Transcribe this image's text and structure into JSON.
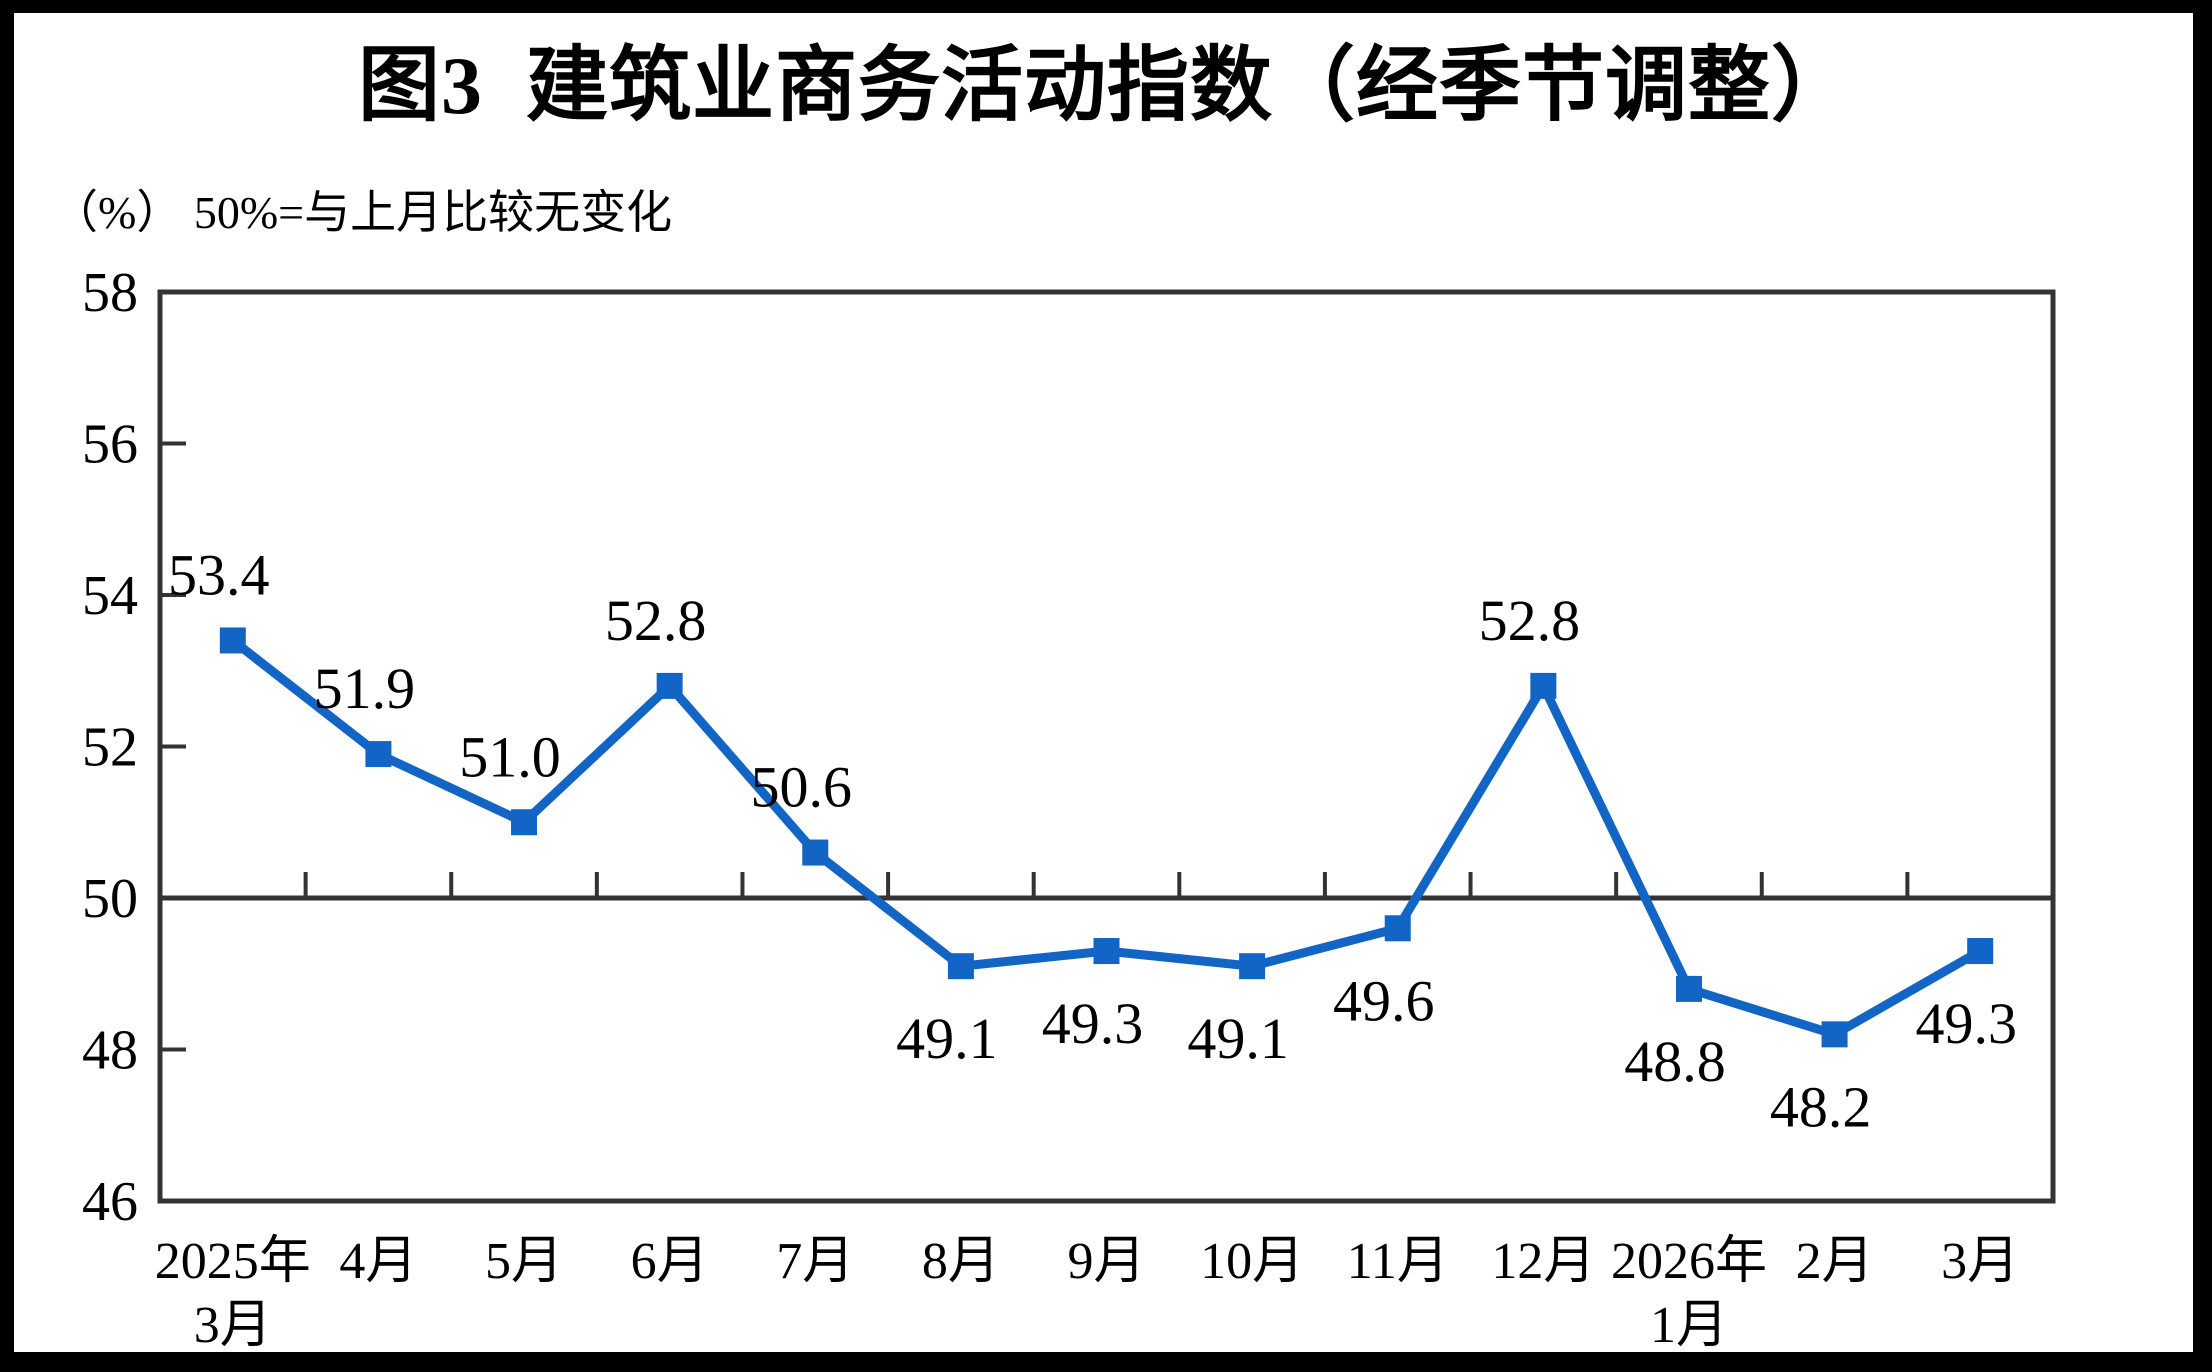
{
  "title": "图3  建筑业商务活动指数（经季节调整）",
  "subtitle": "（%） 50%=与上月比较无变化",
  "colors": {
    "line": "#1265c4",
    "axis": "#333333",
    "text": "#000000",
    "background": "#ffffff",
    "page_border": "#000000"
  },
  "chart_data": {
    "type": "line",
    "title": "图3 建筑业商务活动指数（经季节调整）",
    "unit": "%",
    "note": "50%=与上月比较无变化",
    "categories": [
      "2025年3月",
      "4月",
      "5月",
      "6月",
      "7月",
      "8月",
      "9月",
      "10月",
      "11月",
      "12月",
      "2026年1月",
      "2月",
      "3月"
    ],
    "category_lines": [
      [
        "2025年",
        "3月"
      ],
      [
        "4月"
      ],
      [
        "5月"
      ],
      [
        "6月"
      ],
      [
        "7月"
      ],
      [
        "8月"
      ],
      [
        "9月"
      ],
      [
        "10月"
      ],
      [
        "11月"
      ],
      [
        "12月"
      ],
      [
        "2026年",
        "1月"
      ],
      [
        "2月"
      ],
      [
        "3月"
      ]
    ],
    "series": [
      {
        "name": "建筑业商务活动指数",
        "values": [
          53.4,
          51.9,
          51.0,
          52.8,
          50.6,
          49.1,
          49.3,
          49.1,
          49.6,
          52.8,
          48.8,
          48.2,
          49.3
        ],
        "labels": [
          "53.4",
          "51.9",
          "51.0",
          "52.8",
          "50.6",
          "49.1",
          "49.3",
          "49.1",
          "49.6",
          "52.8",
          "48.8",
          "48.2",
          "49.3"
        ],
        "label_position": [
          "above",
          "above",
          "above",
          "above",
          "above",
          "below",
          "below",
          "below",
          "below",
          "above",
          "below",
          "below",
          "below"
        ]
      }
    ],
    "ylim": [
      46,
      58
    ],
    "yticks": [
      "46",
      "48",
      "50",
      "52",
      "54",
      "56",
      "58"
    ],
    "baseline_value": 50,
    "grid": false,
    "legend_position": "none",
    "marker": "square"
  }
}
